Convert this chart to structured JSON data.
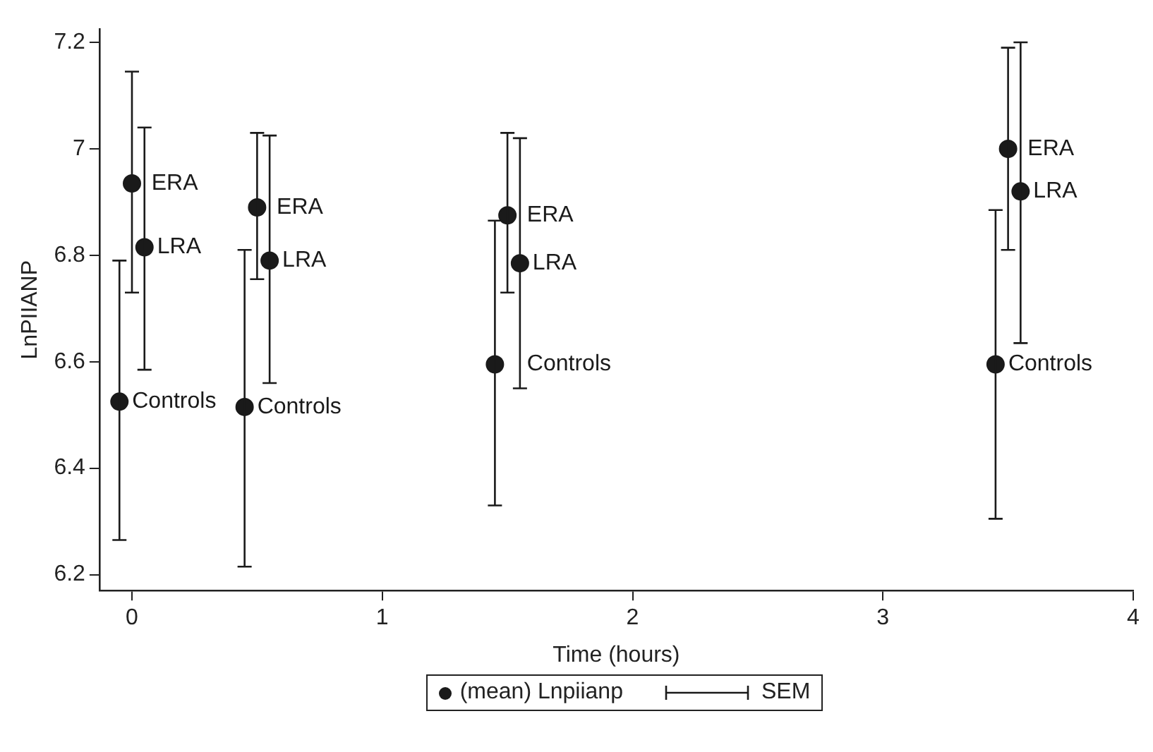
{
  "chart_data": {
    "type": "scatter",
    "xlabel": "Time (hours)",
    "ylabel": "LnPIIANP",
    "series": [
      {
        "name": "(mean) Lnpiianp",
        "color": "#1a1a1a",
        "x": [
          -0.05,
          0,
          0.05,
          0.45,
          0.5,
          0.55,
          1.45,
          1.5,
          1.55,
          3.45,
          3.5,
          3.55
        ],
        "values": [
          6.525,
          6.935,
          6.815,
          6.515,
          6.89,
          6.79,
          6.595,
          6.875,
          6.785,
          6.595,
          7.0,
          6.92
        ],
        "errors": [
          [
            6.265,
            6.79
          ],
          [
            6.73,
            7.145
          ],
          [
            6.585,
            7.04
          ],
          [
            6.215,
            6.81
          ],
          [
            6.755,
            7.03
          ],
          [
            6.56,
            7.025
          ],
          [
            6.33,
            6.865
          ],
          [
            6.73,
            7.03
          ],
          [
            6.55,
            7.02
          ],
          [
            6.305,
            6.885
          ],
          [
            6.81,
            7.19
          ],
          [
            6.635,
            7.2
          ]
        ],
        "value_labels": [
          "Controls",
          "ERA",
          "LRA",
          "Controls",
          "ERA",
          "LRA",
          "Controls",
          "ERA",
          "LRA",
          "Controls",
          "ERA",
          "LRA"
        ]
      }
    ],
    "annotations": [
      "SEM"
    ],
    "xlim": [
      -0.13,
      4.0
    ],
    "xticks": [
      0,
      1,
      2,
      3,
      4
    ],
    "ylim": [
      6.17,
      7.225
    ],
    "yticks": [
      6.2,
      6.4,
      6.6,
      6.8,
      7,
      7.2
    ],
    "marker": "circle",
    "legend": "bottom",
    "grid": false
  }
}
